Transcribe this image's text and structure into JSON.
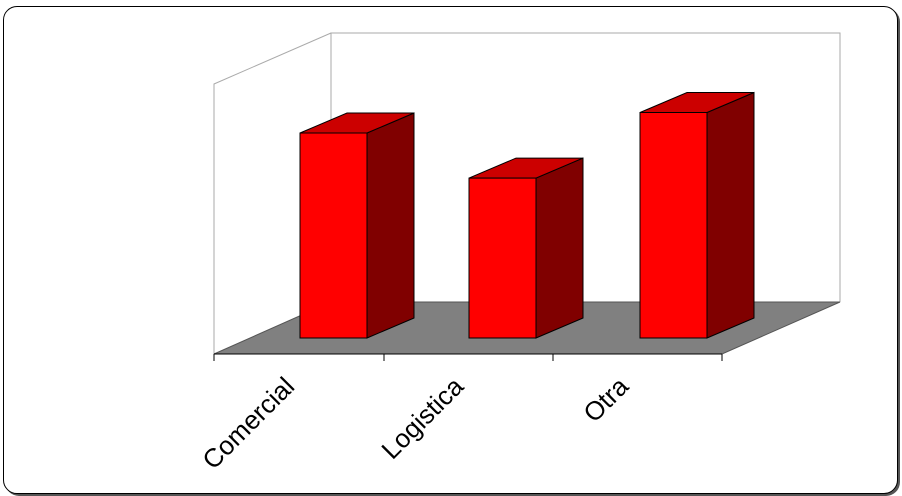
{
  "chart_data": {
    "type": "bar",
    "style": "3d-column",
    "categories": [
      "Comercial",
      "Logistica",
      "Otra"
    ],
    "values": [
      100,
      78,
      110
    ],
    "ylim": [
      0,
      120
    ],
    "title": "",
    "xlabel": "",
    "ylabel": "",
    "grid": false,
    "legend": "none",
    "colors": {
      "bar_front": "#ff0000",
      "bar_top": "#cc0000",
      "bar_side": "#800000",
      "floor": "#808080",
      "frame": "#000000"
    }
  }
}
